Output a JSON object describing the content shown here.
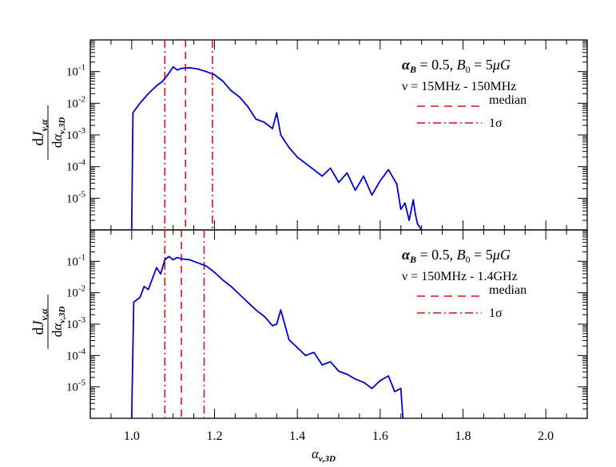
{
  "chart_data": [
    {
      "type": "line",
      "panel": "top",
      "annotation": {
        "line1_symbol": "α",
        "line1_sub": "B",
        "line1_mid": " = 0.5,  ",
        "line1_b": "B",
        "line1_b_sub": "0",
        "line1_end": " = 5",
        "line1_mu": "μ",
        "line1_g": "G",
        "line2": "ν = 15MHz - 150MHz"
      },
      "ylabel": {
        "num": "dJ",
        "num_sub": "ν,α",
        "den": "dα",
        "den_sub": "ν,3D"
      },
      "yscale": "log",
      "ylim_log10": [
        -6,
        0
      ],
      "yticks": [
        {
          "label": "10",
          "exp": "-1",
          "log": -1
        },
        {
          "label": "10",
          "exp": "-2",
          "log": -2
        },
        {
          "label": "10",
          "exp": "-3",
          "log": -3
        },
        {
          "label": "10",
          "exp": "-4",
          "log": -4
        },
        {
          "label": "10",
          "exp": "-5",
          "log": -5
        }
      ],
      "median": 1.13,
      "sigma": [
        1.08,
        1.195
      ],
      "series": [
        {
          "name": "distribution",
          "color": "#0000cc",
          "x": [
            1.0,
            1.003,
            1.02,
            1.04,
            1.06,
            1.075,
            1.09,
            1.1,
            1.11,
            1.12,
            1.14,
            1.16,
            1.18,
            1.2,
            1.22,
            1.24,
            1.26,
            1.28,
            1.3,
            1.32,
            1.34,
            1.35,
            1.36,
            1.38,
            1.4,
            1.42,
            1.44,
            1.46,
            1.48,
            1.5,
            1.52,
            1.54,
            1.56,
            1.58,
            1.6,
            1.62,
            1.64,
            1.65,
            1.66,
            1.67,
            1.68,
            1.685,
            1.69,
            1.7
          ],
          "log_y": [
            -6,
            -2.3,
            -2.0,
            -1.7,
            -1.45,
            -1.3,
            -1.05,
            -0.85,
            -0.95,
            -0.9,
            -0.88,
            -0.92,
            -1.0,
            -1.1,
            -1.3,
            -1.6,
            -1.8,
            -2.1,
            -2.5,
            -2.6,
            -2.8,
            -2.3,
            -3.0,
            -3.4,
            -3.7,
            -3.9,
            -4.1,
            -4.3,
            -4.05,
            -4.5,
            -4.2,
            -4.75,
            -4.3,
            -4.9,
            -4.45,
            -4.1,
            -4.55,
            -5.35,
            -5.15,
            -5.7,
            -5.05,
            -5.5,
            -5.8,
            -6
          ]
        }
      ]
    },
    {
      "type": "line",
      "panel": "bottom",
      "annotation": {
        "line1_symbol": "α",
        "line1_sub": "B",
        "line1_mid": " = 0.5,  ",
        "line1_b": "B",
        "line1_b_sub": "0",
        "line1_end": " = 5",
        "line1_mu": "μ",
        "line1_g": "G",
        "line2": "ν = 150MHz - 1.4GHz"
      },
      "ylabel": {
        "num": "dJ",
        "num_sub": "ν,α",
        "den": "dα",
        "den_sub": "ν,3D"
      },
      "yscale": "log",
      "ylim_log10": [
        -6,
        0
      ],
      "yticks": [
        {
          "label": "10",
          "exp": "-1",
          "log": -1
        },
        {
          "label": "10",
          "exp": "-2",
          "log": -2
        },
        {
          "label": "10",
          "exp": "-3",
          "log": -3
        },
        {
          "label": "10",
          "exp": "-4",
          "log": -4
        },
        {
          "label": "10",
          "exp": "-5",
          "log": -5
        }
      ],
      "median": 1.12,
      "sigma": [
        1.08,
        1.175
      ],
      "series": [
        {
          "name": "distribution",
          "color": "#0000cc",
          "x": [
            1.0,
            1.005,
            1.02,
            1.03,
            1.04,
            1.05,
            1.06,
            1.07,
            1.08,
            1.09,
            1.1,
            1.11,
            1.12,
            1.14,
            1.16,
            1.18,
            1.2,
            1.22,
            1.24,
            1.26,
            1.28,
            1.3,
            1.32,
            1.34,
            1.35,
            1.36,
            1.38,
            1.4,
            1.42,
            1.44,
            1.46,
            1.48,
            1.5,
            1.52,
            1.54,
            1.56,
            1.58,
            1.6,
            1.62,
            1.635,
            1.65,
            1.655
          ],
          "log_y": [
            -6,
            -2.3,
            -2.15,
            -1.8,
            -1.9,
            -1.55,
            -1.2,
            -1.4,
            -0.95,
            -0.85,
            -0.95,
            -0.88,
            -0.92,
            -0.95,
            -1.05,
            -1.15,
            -1.35,
            -1.6,
            -1.8,
            -2.05,
            -2.3,
            -2.55,
            -2.75,
            -3.05,
            -3.0,
            -2.55,
            -3.5,
            -3.75,
            -4.0,
            -3.9,
            -4.3,
            -4.2,
            -4.5,
            -4.6,
            -4.75,
            -4.85,
            -5.05,
            -4.8,
            -4.65,
            -5.15,
            -5.05,
            -6
          ]
        }
      ]
    }
  ],
  "xaxis": {
    "xlim": [
      0.9,
      2.1
    ],
    "ticks": [
      1.0,
      1.2,
      1.4,
      1.6,
      1.8,
      2.0
    ],
    "tick_labels": [
      "1.0",
      "1.2",
      "1.4",
      "1.6",
      "1.8",
      "2.0"
    ],
    "label": "α",
    "label_sub": "ν,3D"
  },
  "legend": {
    "median": "median",
    "sigma": "1σ"
  },
  "colors": {
    "line": "#0000cc",
    "ref": "#dd1111"
  }
}
